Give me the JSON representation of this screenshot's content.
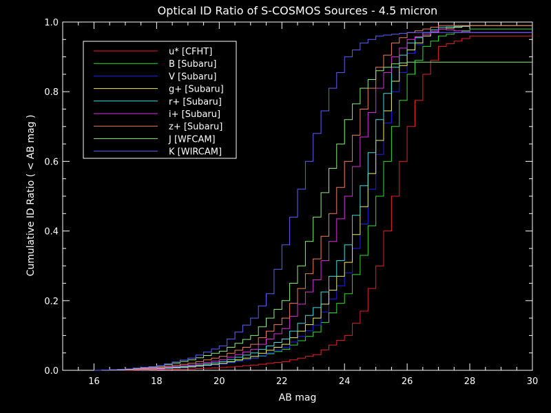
{
  "chart_data": {
    "type": "line",
    "title": "Optical ID Ratio of S-COSMOS Sources - 4.5 micron",
    "xlabel": "AB mag",
    "ylabel": "Cumulative ID Ratio  ( < AB mag )",
    "xlim": [
      15,
      30
    ],
    "ylim": [
      0,
      1
    ],
    "x_ticks": [
      16,
      18,
      20,
      22,
      24,
      26,
      28,
      30
    ],
    "y_ticks": [
      0.0,
      0.2,
      0.4,
      0.6,
      0.8,
      1.0
    ],
    "y_tick_labels": [
      "0.0",
      "0.2",
      "0.4",
      "0.6",
      "0.8",
      "1.0"
    ],
    "legend_position": "top-left",
    "step": true,
    "series": [
      {
        "name": "u* [CFHT]",
        "color": "#e8202a",
        "x": [
          16,
          17,
          18,
          19,
          20,
          21,
          22,
          23,
          24,
          24.5,
          25,
          25.5,
          26,
          26.5,
          27,
          28,
          30
        ],
        "y": [
          0,
          0,
          0.002,
          0.004,
          0.008,
          0.015,
          0.025,
          0.045,
          0.1,
          0.17,
          0.3,
          0.5,
          0.7,
          0.85,
          0.93,
          0.96,
          0.96
        ]
      },
      {
        "name": "B [Subaru]",
        "color": "#30e030",
        "x": [
          16,
          17,
          18,
          19,
          20,
          21,
          22,
          23,
          24,
          24.5,
          25,
          25.5,
          26,
          26.5,
          27,
          28,
          30
        ],
        "y": [
          0,
          0.001,
          0.005,
          0.01,
          0.02,
          0.035,
          0.06,
          0.11,
          0.22,
          0.33,
          0.5,
          0.7,
          0.85,
          0.93,
          0.96,
          0.98,
          0.98
        ]
      },
      {
        "name": "V [Subaru]",
        "color": "#2020f0",
        "x": [
          16,
          17,
          18,
          19,
          20,
          21,
          22,
          23,
          24,
          24.5,
          25,
          25.5,
          26,
          26.5,
          27,
          28,
          30
        ],
        "y": [
          0,
          0.001,
          0.004,
          0.009,
          0.018,
          0.035,
          0.065,
          0.13,
          0.28,
          0.42,
          0.62,
          0.8,
          0.91,
          0.96,
          0.98,
          0.99,
          0.99
        ]
      },
      {
        "name": "g+ [Subaru]",
        "color": "#f0f060",
        "x": [
          16,
          17,
          18,
          19,
          20,
          21,
          22,
          23,
          24,
          24.5,
          25,
          25.5,
          26,
          26.5,
          27,
          28,
          30
        ],
        "y": [
          0,
          0.001,
          0.005,
          0.01,
          0.02,
          0.04,
          0.075,
          0.15,
          0.31,
          0.47,
          0.66,
          0.83,
          0.92,
          0.96,
          0.98,
          0.99,
          0.99
        ]
      },
      {
        "name": "r+ [Subaru]",
        "color": "#40e0e0",
        "x": [
          16,
          17,
          18,
          19,
          20,
          21,
          22,
          23,
          24,
          24.5,
          25,
          25.5,
          26,
          26.5,
          27,
          28,
          30
        ],
        "y": [
          0,
          0.002,
          0.006,
          0.012,
          0.025,
          0.05,
          0.09,
          0.18,
          0.36,
          0.53,
          0.72,
          0.87,
          0.94,
          0.97,
          0.985,
          0.99,
          0.99
        ]
      },
      {
        "name": "i+ [Subaru]",
        "color": "#e030e0",
        "x": [
          16,
          17,
          18,
          19,
          20,
          21,
          22,
          23,
          23.5,
          24,
          24.5,
          25,
          25.5,
          26,
          27,
          28,
          30
        ],
        "y": [
          0,
          0.002,
          0.007,
          0.015,
          0.03,
          0.06,
          0.12,
          0.26,
          0.37,
          0.5,
          0.67,
          0.81,
          0.9,
          0.95,
          0.98,
          0.97,
          0.97
        ]
      },
      {
        "name": "z+ [Subaru]",
        "color": "#f08060",
        "x": [
          16,
          17,
          18,
          19,
          20,
          21,
          22,
          23,
          23.5,
          24,
          24.5,
          25,
          25.5,
          26,
          27,
          28,
          30
        ],
        "y": [
          0,
          0.003,
          0.009,
          0.02,
          0.04,
          0.075,
          0.15,
          0.32,
          0.45,
          0.6,
          0.75,
          0.87,
          0.94,
          0.97,
          0.99,
          0.99,
          0.99
        ]
      },
      {
        "name": "J [WFCAM]",
        "color": "#90f080",
        "x": [
          16,
          17,
          18,
          19,
          20,
          21,
          22,
          22.5,
          23,
          23.5,
          24,
          24.5,
          25,
          25.5,
          26,
          28,
          30
        ],
        "y": [
          0,
          0.003,
          0.012,
          0.03,
          0.055,
          0.1,
          0.2,
          0.3,
          0.44,
          0.58,
          0.72,
          0.81,
          0.86,
          0.88,
          0.885,
          0.885,
          0.885
        ]
      },
      {
        "name": "K [WIRCAM]",
        "color": "#6060ff",
        "x": [
          16,
          17,
          18,
          19,
          20,
          21,
          21.5,
          22,
          22.5,
          23,
          23.5,
          24,
          24.5,
          25,
          26,
          28,
          30
        ],
        "y": [
          0,
          0.004,
          0.013,
          0.035,
          0.07,
          0.15,
          0.22,
          0.36,
          0.52,
          0.68,
          0.81,
          0.9,
          0.94,
          0.96,
          0.97,
          0.97,
          0.97
        ]
      }
    ]
  }
}
